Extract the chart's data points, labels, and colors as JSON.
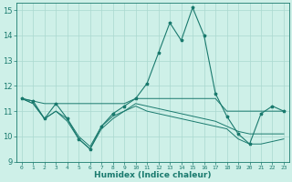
{
  "xlabel": "Humidex (Indice chaleur)",
  "x": [
    0,
    1,
    2,
    3,
    4,
    5,
    6,
    7,
    8,
    9,
    10,
    11,
    12,
    13,
    14,
    15,
    16,
    17,
    18,
    19,
    20,
    21,
    22,
    23
  ],
  "line1": [
    11.5,
    11.4,
    10.7,
    11.3,
    10.7,
    9.9,
    9.5,
    10.4,
    10.9,
    11.2,
    11.5,
    12.1,
    13.3,
    14.5,
    13.8,
    15.1,
    14.0,
    11.7,
    10.8,
    10.1,
    9.7,
    10.9,
    11.2,
    11.0
  ],
  "line2": [
    11.5,
    11.4,
    11.3,
    11.3,
    11.3,
    11.3,
    11.3,
    11.3,
    11.3,
    11.3,
    11.5,
    11.5,
    11.5,
    11.5,
    11.5,
    11.5,
    11.5,
    11.5,
    11.0,
    11.0,
    11.0,
    11.0,
    11.0,
    11.0
  ],
  "line3": [
    11.5,
    11.3,
    10.7,
    11.0,
    10.7,
    10.0,
    9.6,
    10.4,
    10.8,
    11.0,
    11.3,
    11.2,
    11.1,
    11.0,
    10.9,
    10.8,
    10.7,
    10.6,
    10.4,
    10.2,
    10.1,
    10.1,
    10.1,
    10.1
  ],
  "line4": [
    11.5,
    11.3,
    10.7,
    11.0,
    10.6,
    9.9,
    9.5,
    10.3,
    10.7,
    11.0,
    11.2,
    11.0,
    10.9,
    10.8,
    10.7,
    10.6,
    10.5,
    10.4,
    10.3,
    9.9,
    9.7,
    9.7,
    9.8,
    9.9
  ],
  "color": "#1a7a6e",
  "bg_color": "#cef0e8",
  "grid_color": "#aad8cf",
  "ylim": [
    9,
    15
  ],
  "yticks": [
    9,
    10,
    11,
    12,
    13,
    14,
    15
  ],
  "markersize": 2.5
}
